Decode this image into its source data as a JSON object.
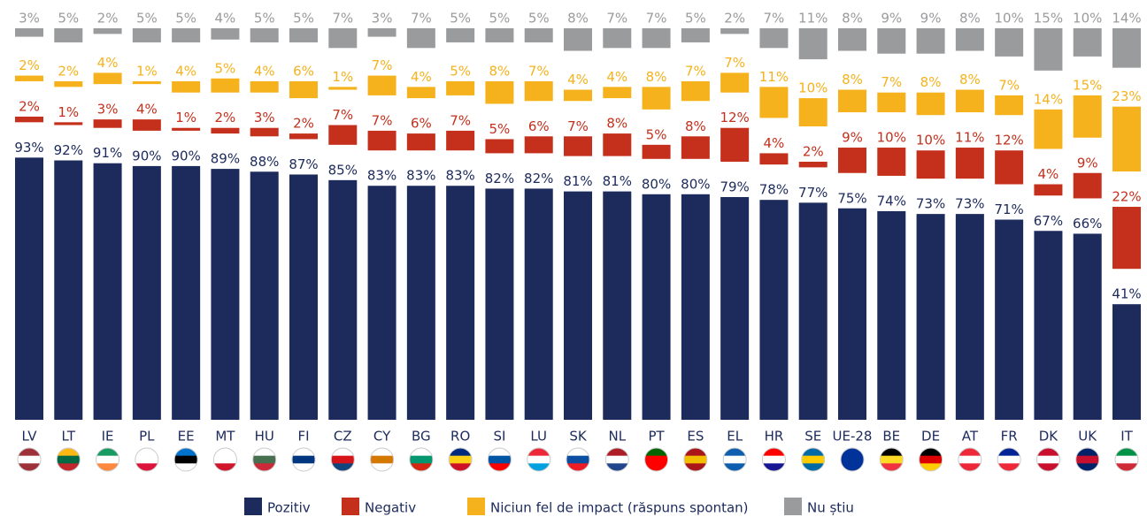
{
  "chart_data": {
    "type": "bar",
    "categories": [
      "LV",
      "LT",
      "IE",
      "PL",
      "EE",
      "MT",
      "HU",
      "FI",
      "CZ",
      "CY",
      "BG",
      "RO",
      "SI",
      "LU",
      "SK",
      "NL",
      "PT",
      "ES",
      "EL",
      "HR",
      "SE",
      "UE-28",
      "BE",
      "DE",
      "AT",
      "FR",
      "DK",
      "UK",
      "IT"
    ],
    "series": [
      {
        "name": "Pozitiv",
        "color": "#1c2a5c",
        "values": [
          93,
          92,
          91,
          90,
          90,
          89,
          88,
          87,
          85,
          83,
          83,
          83,
          82,
          82,
          81,
          81,
          80,
          80,
          79,
          78,
          77,
          75,
          74,
          73,
          73,
          71,
          67,
          66,
          41
        ],
        "value_labels": [
          "93%",
          "92%",
          "91%",
          "90%",
          "90%",
          "89%",
          "88%",
          "87%",
          "85%",
          "83%",
          "83%",
          "83%",
          "82%",
          "82%",
          "81%",
          "81%",
          "80%",
          "80%",
          "79%",
          "78%",
          "77%",
          "75%",
          "74%",
          "73%",
          "73%",
          "71%",
          "67%",
          "66%",
          "41%"
        ]
      },
      {
        "name": "Negativ",
        "color": "#c4301c",
        "values": [
          2,
          1,
          3,
          4,
          1,
          2,
          3,
          2,
          7,
          7,
          6,
          7,
          5,
          6,
          7,
          8,
          5,
          8,
          12,
          4,
          2,
          9,
          10,
          10,
          11,
          12,
          4,
          9,
          22
        ],
        "value_labels": [
          "2%",
          "1%",
          "3%",
          "4%",
          "1%",
          "2%",
          "3%",
          "2%",
          "7%",
          "7%",
          "6%",
          "7%",
          "5%",
          "6%",
          "7%",
          "8%",
          "5%",
          "8%",
          "12%",
          "4%",
          "2%",
          "9%",
          "10%",
          "10%",
          "11%",
          "12%",
          "4%",
          "9%",
          "22%"
        ]
      },
      {
        "name": "Niciun fel de impact (răspuns spontan)",
        "color": "#f5b21d",
        "values": [
          2,
          2,
          4,
          1,
          4,
          5,
          4,
          6,
          1,
          7,
          4,
          5,
          8,
          7,
          4,
          4,
          8,
          7,
          7,
          11,
          10,
          8,
          7,
          8,
          8,
          7,
          14,
          15,
          23
        ],
        "value_labels": [
          "2%",
          "2%",
          "4%",
          "1%",
          "4%",
          "5%",
          "4%",
          "6%",
          "1%",
          "7%",
          "4%",
          "5%",
          "8%",
          "7%",
          "4%",
          "4%",
          "8%",
          "7%",
          "7%",
          "11%",
          "10%",
          "8%",
          "7%",
          "8%",
          "8%",
          "7%",
          "14%",
          "15%",
          "23%"
        ]
      },
      {
        "name": "Nu știu",
        "color": "#9a9b9d",
        "values": [
          3,
          5,
          2,
          5,
          5,
          4,
          5,
          5,
          7,
          3,
          7,
          5,
          5,
          5,
          8,
          7,
          7,
          5,
          2,
          7,
          11,
          8,
          9,
          9,
          8,
          10,
          15,
          10,
          14
        ],
        "value_labels": [
          "3%",
          "5%",
          "2%",
          "5%",
          "5%",
          "4%",
          "5%",
          "5%",
          "7%",
          "3%",
          "7%",
          "5%",
          "5%",
          "5%",
          "8%",
          "7%",
          "7%",
          "5%",
          "2%",
          "7%",
          "11%",
          "8%",
          "9%",
          "9%",
          "8%",
          "10%",
          "15%",
          "10%",
          "14%"
        ]
      }
    ]
  }
}
